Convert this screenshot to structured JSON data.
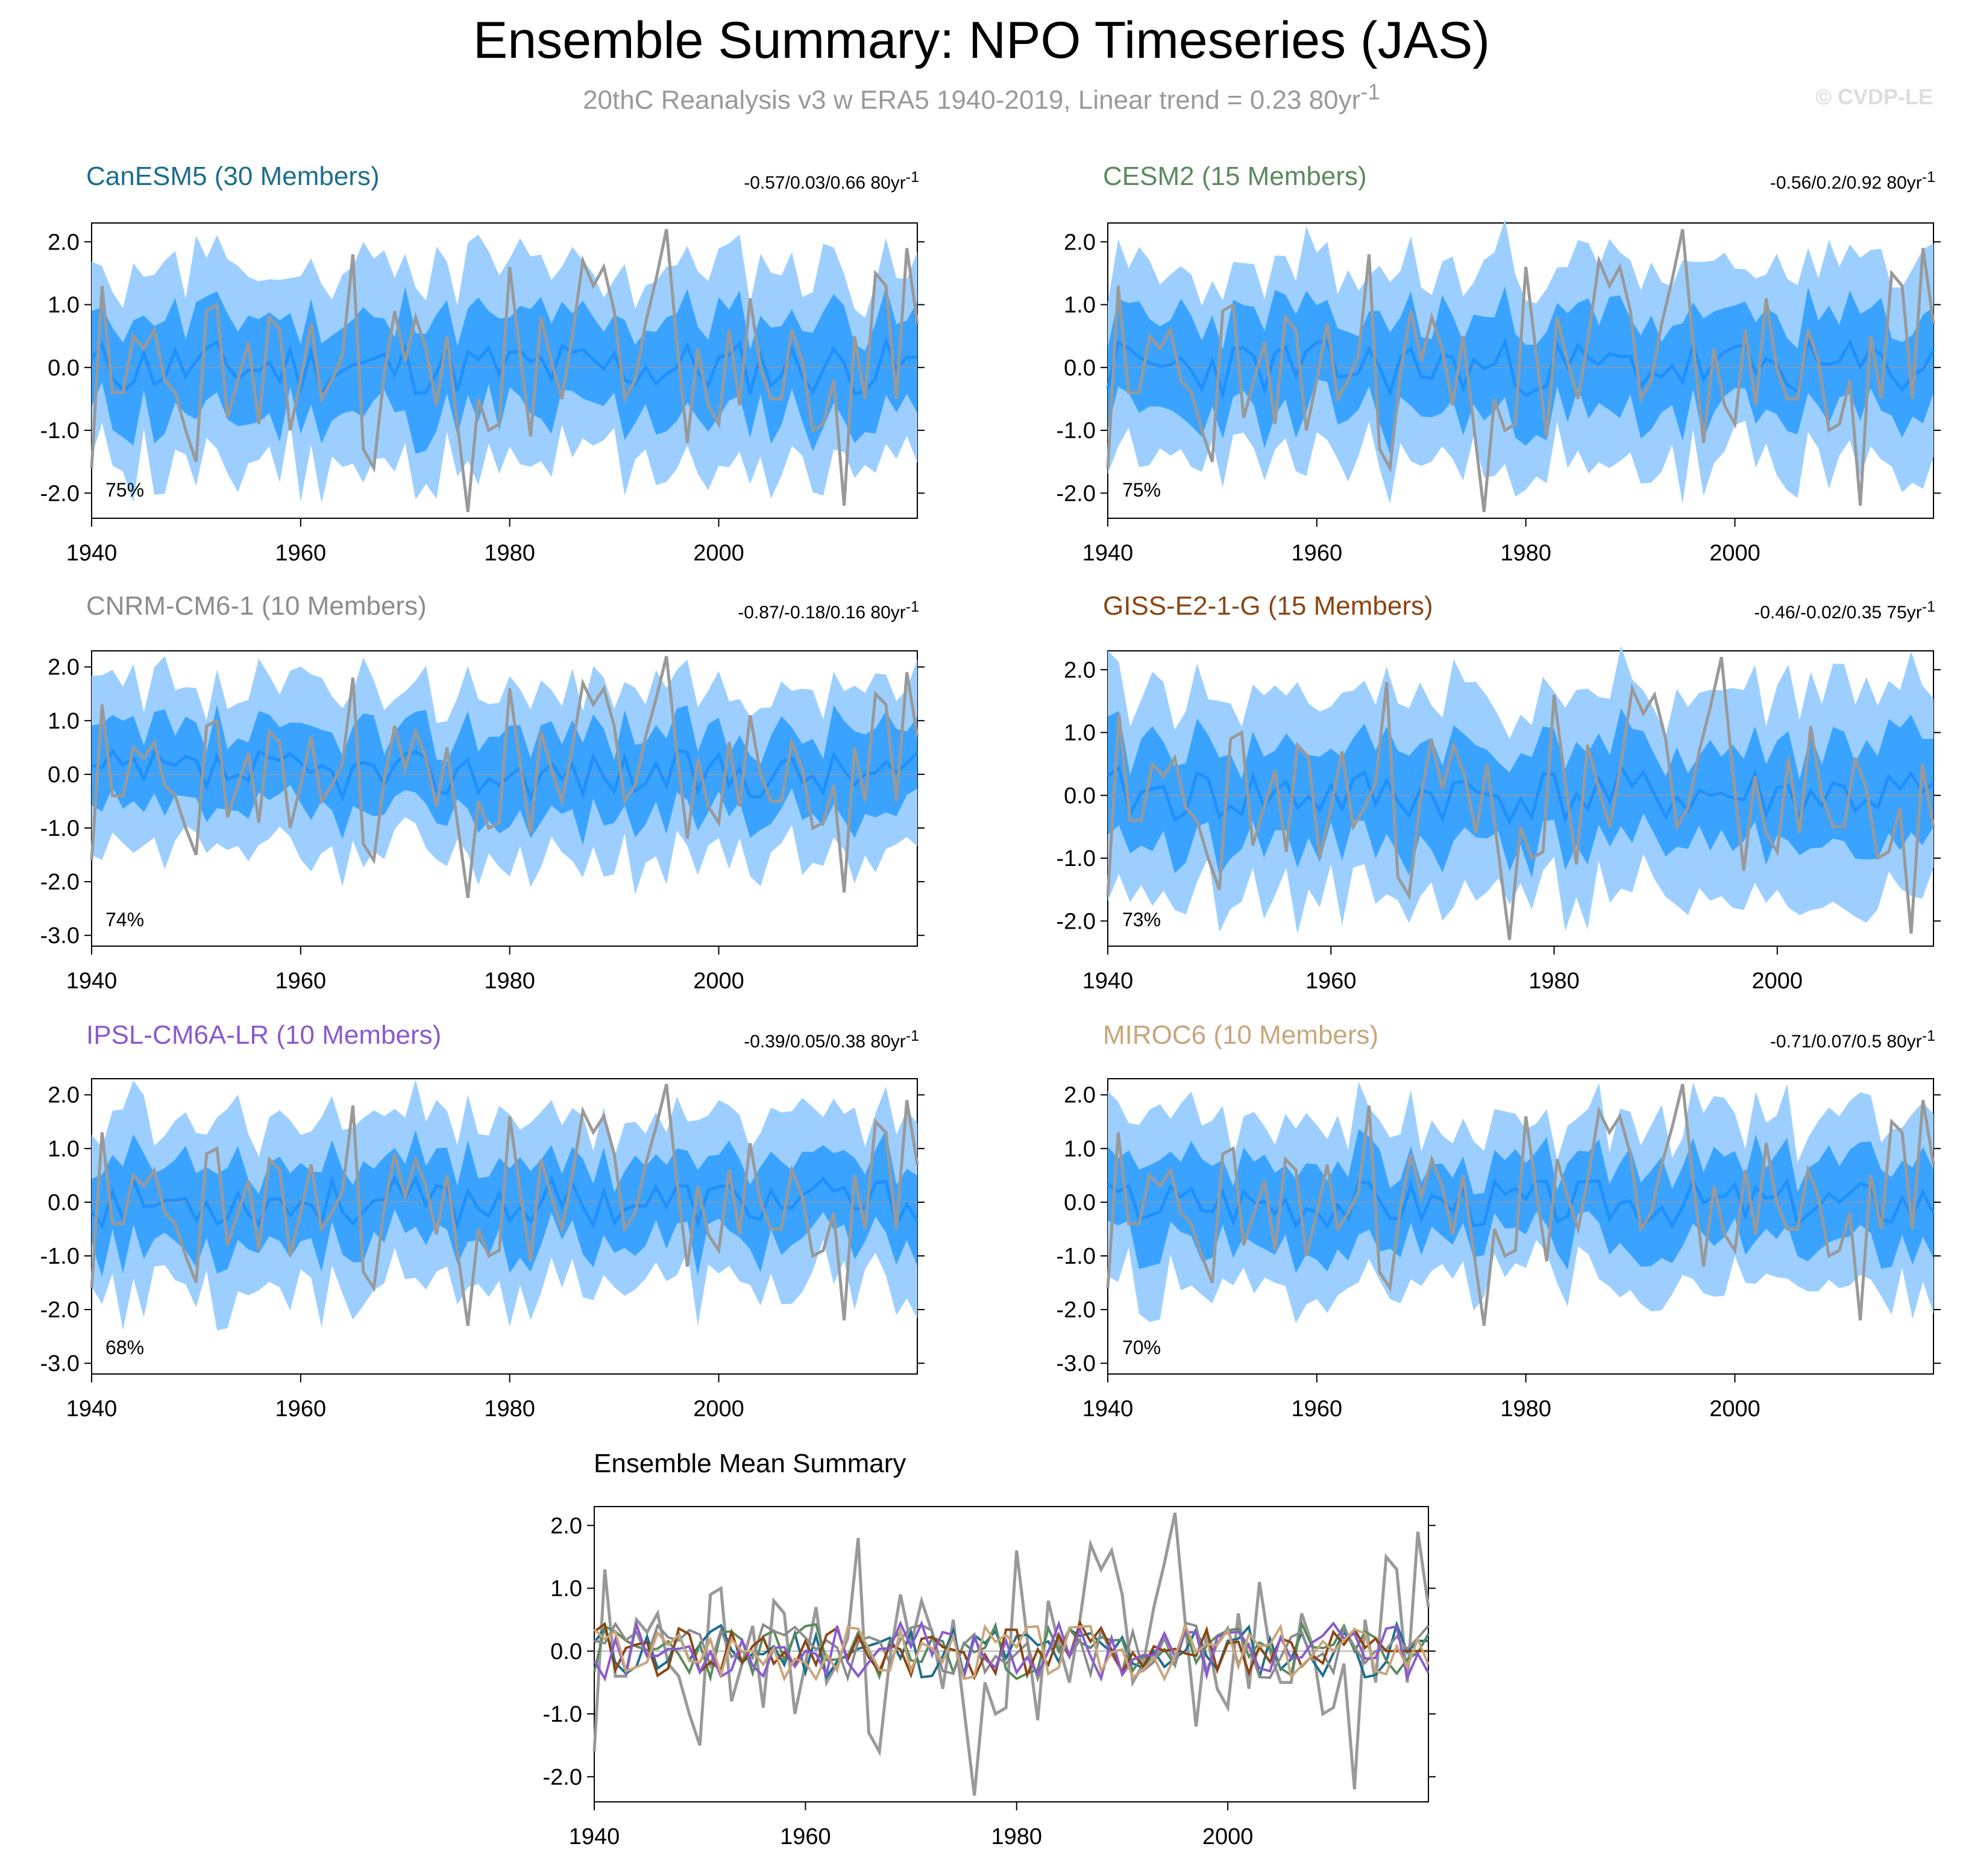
{
  "figure": {
    "title": "Ensemble Summary: NPO Timeseries (JAS)",
    "subtitle": "20thC Reanalysis v3 w ERA5 1940-2019, Linear trend = 0.23 80yr",
    "subtitle_sup": "-1",
    "credit": "© CVDP-LE"
  },
  "colors": {
    "observations": "#999999",
    "ensemble_mean": "#1e90ff",
    "band_inner": "#3aa3ff",
    "band_outer": "#9ccfff",
    "zero_line": "#999999"
  },
  "panels": [
    {
      "name": "CanESM5 (30 Members)",
      "color": "#1d6e8f",
      "range": "-0.57/0.03/0.66 80yr",
      "range_sup": "-1",
      "percent": "75%",
      "seed": 11
    },
    {
      "name": "CESM2 (15 Members)",
      "color": "#5a8a5e",
      "range": "-0.56/0.2/0.92 80yr",
      "range_sup": "-1",
      "percent": "75%",
      "seed": 23
    },
    {
      "name": "CNRM-CM6-1 (10 Members)",
      "color": "#8c8c8c",
      "range": "-0.87/-0.18/0.16 80yr",
      "range_sup": "-1",
      "percent": "74%",
      "seed": 37
    },
    {
      "name": "GISS-E2-1-G (15 Members)",
      "color": "#8b4513",
      "range": "-0.46/-0.02/0.35 75yr",
      "range_sup": "-1",
      "percent": "73%",
      "seed": 41
    },
    {
      "name": "IPSL-CM6A-LR (10 Members)",
      "color": "#8a5ad0",
      "range": "-0.39/0.05/0.38 80yr",
      "range_sup": "-1",
      "percent": "68%",
      "seed": 53
    },
    {
      "name": "MIROC6 (10 Members)",
      "color": "#c9a57a",
      "range": "-0.71/0.07/0.5 80yr",
      "range_sup": "-1",
      "percent": "70%",
      "seed": 67
    }
  ],
  "ensemble_mean_title": "Ensemble Mean Summary",
  "chart_data": [
    {
      "type": "area",
      "panel": "CanESM5 (30 Members)",
      "x_start": 1940,
      "x_end": 2019,
      "ylim": [
        -2.4,
        2.3
      ],
      "yticks": [
        -2.0,
        -1.0,
        0.0,
        1.0,
        2.0
      ],
      "xticks": [
        1940,
        1960,
        1980,
        2000
      ]
    },
    {
      "type": "area",
      "panel": "CESM2 (15 Members)",
      "x_start": 1940,
      "x_end": 2019,
      "ylim": [
        -2.4,
        2.3
      ],
      "yticks": [
        -2.0,
        -1.0,
        0.0,
        1.0,
        2.0
      ],
      "xticks": [
        1940,
        1960,
        1980,
        2000
      ]
    },
    {
      "type": "area",
      "panel": "CNRM-CM6-1 (10 Members)",
      "x_start": 1940,
      "x_end": 2019,
      "ylim": [
        -3.2,
        2.3
      ],
      "yticks": [
        -3.0,
        -2.0,
        -1.0,
        0.0,
        1.0,
        2.0
      ],
      "xticks": [
        1940,
        1960,
        1980,
        2000
      ]
    },
    {
      "type": "area",
      "panel": "GISS-E2-1-G (15 Members)",
      "x_start": 1940,
      "x_end": 2014,
      "ylim": [
        -2.4,
        2.3
      ],
      "yticks": [
        -2.0,
        -1.0,
        0.0,
        1.0,
        2.0
      ],
      "xticks": [
        1940,
        1960,
        1980,
        2000
      ]
    },
    {
      "type": "area",
      "panel": "IPSL-CM6A-LR (10 Members)",
      "x_start": 1940,
      "x_end": 2019,
      "ylim": [
        -3.2,
        2.3
      ],
      "yticks": [
        -3.0,
        -2.0,
        -1.0,
        0.0,
        1.0,
        2.0
      ],
      "xticks": [
        1940,
        1960,
        1980,
        2000
      ]
    },
    {
      "type": "area",
      "panel": "MIROC6 (10 Members)",
      "x_start": 1940,
      "x_end": 2019,
      "ylim": [
        -3.2,
        2.3
      ],
      "yticks": [
        -3.0,
        -2.0,
        -1.0,
        0.0,
        1.0,
        2.0
      ],
      "xticks": [
        1940,
        1960,
        1980,
        2000
      ]
    },
    {
      "type": "line",
      "panel": "Ensemble Mean Summary",
      "x_start": 1940,
      "x_end": 2019,
      "ylim": [
        -2.4,
        2.3
      ],
      "yticks": [
        -2.0,
        -1.0,
        0.0,
        1.0,
        2.0
      ],
      "xticks": [
        1940,
        1960,
        1980,
        2000
      ]
    }
  ],
  "observed_npo": {
    "years": [
      1940,
      2019
    ],
    "values": [
      -1.6,
      1.3,
      -0.4,
      -0.4,
      0.5,
      0.3,
      0.6,
      -0.2,
      -0.4,
      -1.0,
      -1.5,
      0.9,
      1.0,
      -0.8,
      -0.2,
      0.4,
      -0.9,
      0.8,
      0.6,
      -1.0,
      -0.2,
      0.7,
      -0.5,
      -0.2,
      0.2,
      1.8,
      -1.3,
      -1.6,
      -0.1,
      0.9,
      0.1,
      0.8,
      0.3,
      -0.6,
      0.5,
      -0.9,
      -2.3,
      -0.5,
      -1.0,
      -0.9,
      1.6,
      0.2,
      -1.1,
      0.8,
      0.1,
      -0.5,
      0.5,
      1.7,
      1.3,
      1.6,
      0.9,
      -0.5,
      -0.2,
      0.7,
      1.4,
      2.2,
      0.4,
      -1.2,
      0.3,
      -0.6,
      -0.9,
      0.6,
      -0.6,
      1.1,
      0.0,
      -0.5,
      -0.5,
      0.6,
      0.1,
      -1.0,
      -0.9,
      -0.2,
      -2.2,
      0.5,
      -0.5,
      1.5,
      1.3,
      -0.5,
      1.9,
      0.7
    ]
  }
}
